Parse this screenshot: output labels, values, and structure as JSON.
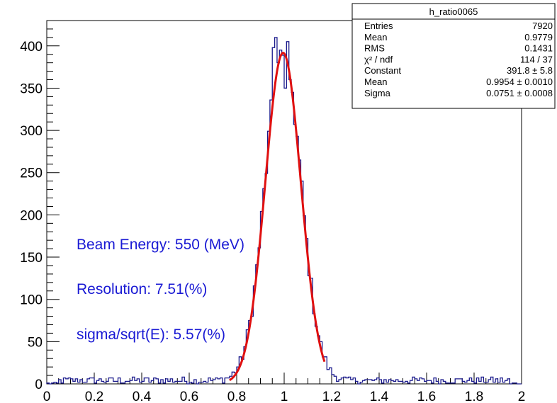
{
  "stats_box": {
    "title": "h_ratio0065",
    "rows": [
      {
        "label": "Entries",
        "value": "7920"
      },
      {
        "label": "Mean",
        "value": "0.9779"
      },
      {
        "label": "RMS",
        "value": "0.1431"
      },
      {
        "label": "χ² / ndf",
        "value": "114 / 37"
      },
      {
        "label": "Constant",
        "value": "391.8 ± 5.8"
      },
      {
        "label": "Mean",
        "value": "0.9954 ± 0.0010"
      },
      {
        "label": "Sigma",
        "value": "0.0751 ± 0.0008"
      }
    ]
  },
  "annotations": {
    "beam_energy": "Beam Energy: 550 (MeV)",
    "resolution": "Resolution: 7.51(%)",
    "sigma_sqrt": "sigma/sqrt(E): 5.57(%)"
  },
  "chart_data": {
    "type": "histogram",
    "title": "",
    "xlabel": "",
    "ylabel": "",
    "xlim": [
      0,
      2
    ],
    "ylim": [
      0,
      430
    ],
    "xticks": [
      "0",
      "0.2",
      "0.4",
      "0.6",
      "0.8",
      "1",
      "1.2",
      "1.4",
      "1.6",
      "1.8",
      "2"
    ],
    "yticks": [
      "0",
      "50",
      "100",
      "150",
      "200",
      "250",
      "300",
      "350",
      "400"
    ],
    "histogram": {
      "bin_width": 0.01,
      "entries": 7920,
      "peaks_sampled": [
        {
          "x": 0.95,
          "y": 398
        },
        {
          "x": 0.96,
          "y": 410
        },
        {
          "x": 0.97,
          "y": 380
        },
        {
          "x": 0.98,
          "y": 395
        },
        {
          "x": 0.99,
          "y": 389
        },
        {
          "x": 1.0,
          "y": 350
        },
        {
          "x": 1.01,
          "y": 405
        },
        {
          "x": 1.02,
          "y": 360
        }
      ],
      "color": "#1a1a8c"
    },
    "fit": {
      "function": "gaus",
      "constant": 391.8,
      "mean": 0.9954,
      "sigma": 0.0751,
      "range": [
        0.77,
        1.17
      ],
      "color": "#e01010"
    },
    "grid": false,
    "legend": "stats box top-right"
  }
}
